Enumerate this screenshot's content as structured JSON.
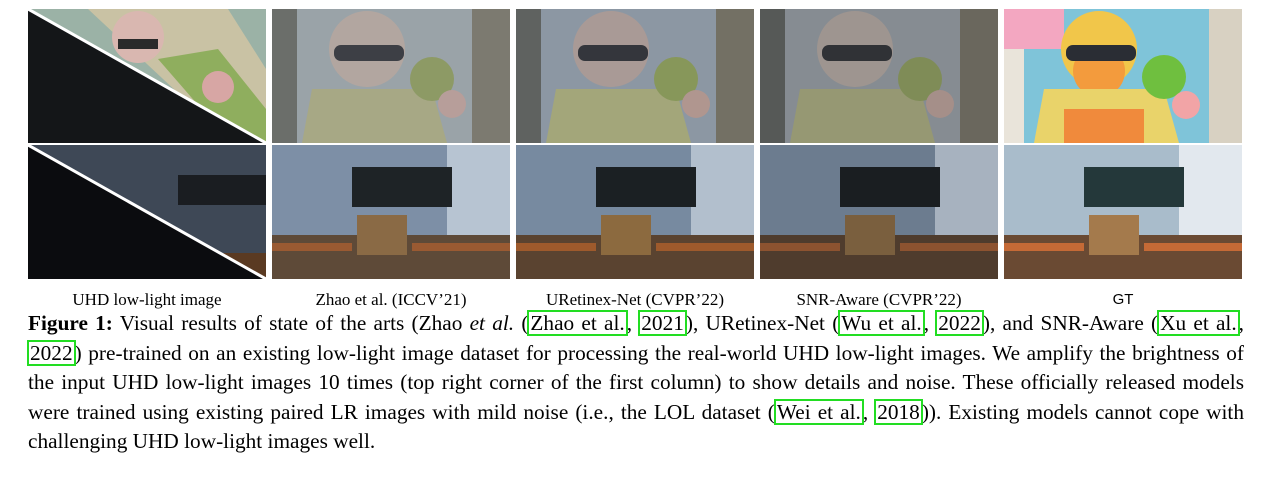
{
  "columns": [
    {
      "label": "UHD low-light image"
    },
    {
      "label": "Zhao et al. (ICCV’21)"
    },
    {
      "label": "URetinex-Net (CVPR’22)"
    },
    {
      "label": "SNR-Aware (CVPR’22)"
    },
    {
      "label": "GT"
    }
  ],
  "caption": {
    "figure_label": "Figure 1:",
    "t1": " Visual results of state of the arts (Zhao ",
    "etal": "et al.",
    "t2": " (",
    "cite1_author": "Zhao et al.",
    "cite1_year": "2021",
    "t3": "), URetinex-Net (",
    "cite2_author": "Wu et al.",
    "cite2_year": "2022",
    "t4": "), and SNR-Aware (",
    "cite3_author": "Xu et al.",
    "cite3_year": "2022",
    "t5": ") pre-trained on an existing low-light image dataset for processing the real-world UHD low-light images.  We amplify the brightness of the input UHD low-light images 10 times (top right corner of the first column) to show details and noise. These officially released models were trained using existing paired LR images with mild noise (i.e., the LOL dataset (",
    "cite4_author": "Wei et al.",
    "cite4_year": "2018",
    "t6": ")). Existing models cannot cope with challenging UHD low-light images well."
  }
}
